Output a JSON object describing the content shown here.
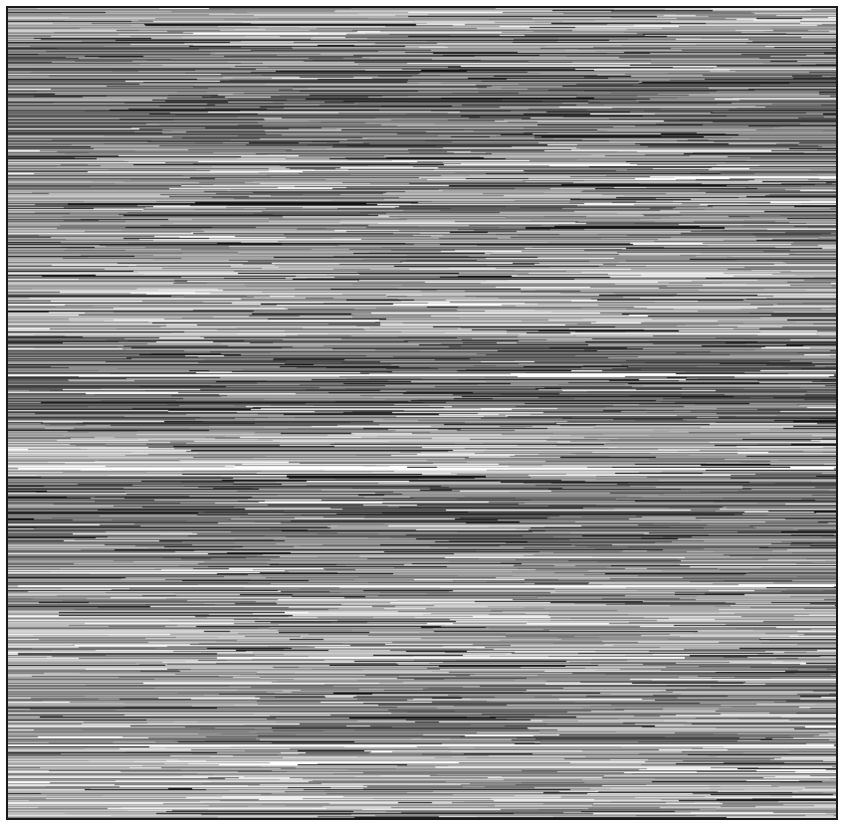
{
  "image": {
    "palette": [
      "#111111",
      "#2b2b2b",
      "#444444",
      "#5e5e5e",
      "#787878",
      "#8f8f8f",
      "#a6a6a6",
      "#bdbdbd",
      "#d4d4d4",
      "#ececec",
      "#ffffff"
    ]
  }
}
